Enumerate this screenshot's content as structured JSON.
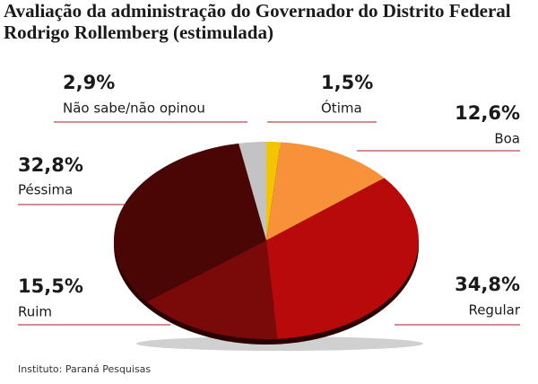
{
  "chart_data": {
    "type": "pie",
    "title": "Avaliação da administração do Governador do Distrito Federal Rodrigo Rollemberg (estimulada)",
    "source": "Instituto: Paraná Pesquisas",
    "categories": [
      "Ótima",
      "Boa",
      "Regular",
      "Ruim",
      "Péssima",
      "Não sabe/não opinou"
    ],
    "values": [
      1.5,
      12.6,
      34.8,
      15.5,
      32.8,
      2.9
    ],
    "value_labels": [
      "1,5%",
      "12,6%",
      "34,8%",
      "15,5%",
      "32,8%",
      "2,9%"
    ],
    "colors": [
      "#f5c400",
      "#f7923a",
      "#b80a0a",
      "#7a0a0a",
      "#4a0505",
      "#c3c3c3"
    ]
  }
}
